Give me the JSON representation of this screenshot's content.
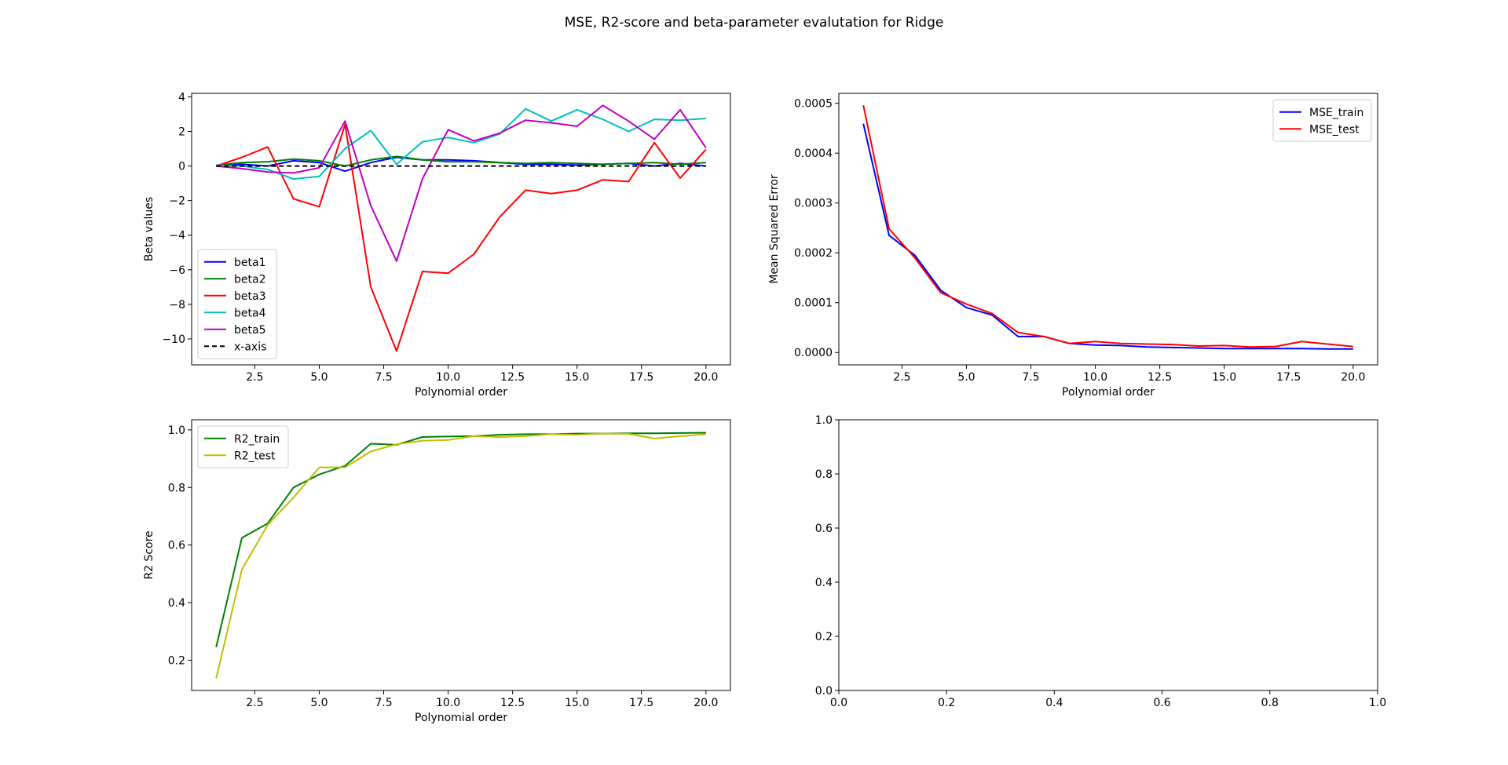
{
  "figure": {
    "suptitle": "MSE, R2-score and beta-parameter evalutation for Ridge"
  },
  "chart_data": [
    {
      "type": "line",
      "xlabel": "Polynomial order",
      "ylabel": "Beta values",
      "xlim": [
        0.05,
        20.95
      ],
      "ylim": [
        -11.5,
        4.2
      ],
      "xticks": [
        2.5,
        5.0,
        7.5,
        10.0,
        12.5,
        15.0,
        17.5,
        20.0
      ],
      "xtick_labels": [
        "2.5",
        "5.0",
        "7.5",
        "10.0",
        "12.5",
        "15.0",
        "17.5",
        "20.0"
      ],
      "yticks": [
        4,
        2,
        0,
        -2,
        -4,
        -6,
        -8,
        -10
      ],
      "ytick_labels": [
        "4",
        "2",
        "0",
        "−2",
        "−4",
        "−6",
        "−8",
        "−10"
      ],
      "legend": "lower-left",
      "x": [
        1,
        2,
        3,
        4,
        5,
        6,
        7,
        8,
        9,
        10,
        11,
        12,
        13,
        14,
        15,
        16,
        17,
        18,
        19,
        20
      ],
      "series": [
        {
          "name": "beta1",
          "color": "#0000ff",
          "dash": "",
          "values": [
            0.0,
            0.1,
            0.0,
            0.3,
            0.2,
            -0.3,
            0.2,
            0.5,
            0.35,
            0.35,
            0.3,
            0.2,
            0.1,
            0.1,
            0.05,
            0.1,
            0.15,
            0.0,
            0.15,
            0.0
          ]
        },
        {
          "name": "beta2",
          "color": "#008000",
          "dash": "",
          "values": [
            0.05,
            0.2,
            0.25,
            0.4,
            0.3,
            0.0,
            0.35,
            0.55,
            0.35,
            0.25,
            0.25,
            0.2,
            0.15,
            0.2,
            0.15,
            0.1,
            0.15,
            0.2,
            0.1,
            0.2
          ]
        },
        {
          "name": "beta3",
          "color": "#ff0000",
          "dash": "",
          "values": [
            0.0,
            0.5,
            1.1,
            -1.9,
            -2.35,
            2.4,
            -7.0,
            -10.7,
            -6.1,
            -6.2,
            -5.1,
            -2.95,
            -1.4,
            -1.6,
            -1.4,
            -0.8,
            -0.9,
            1.35,
            -0.7,
            0.95
          ]
        },
        {
          "name": "beta4",
          "color": "#00bfbf",
          "dash": "",
          "values": [
            0.05,
            0.0,
            -0.2,
            -0.75,
            -0.6,
            1.0,
            2.05,
            0.1,
            1.4,
            1.65,
            1.35,
            1.85,
            3.3,
            2.6,
            3.25,
            2.7,
            2.0,
            2.7,
            2.65,
            2.75
          ]
        },
        {
          "name": "beta5",
          "color": "#bf00bf",
          "dash": "",
          "values": [
            0.0,
            -0.15,
            -0.35,
            -0.4,
            -0.1,
            2.6,
            -2.3,
            -5.5,
            -0.75,
            2.1,
            1.45,
            1.9,
            2.65,
            2.5,
            2.3,
            3.5,
            2.6,
            1.55,
            3.25,
            1.05
          ]
        },
        {
          "name": "x-axis",
          "color": "#000000",
          "dash": "6,4",
          "values": [
            0,
            0,
            0,
            0,
            0,
            0,
            0,
            0,
            0,
            0,
            0,
            0,
            0,
            0,
            0,
            0,
            0,
            0,
            0,
            0
          ]
        }
      ]
    },
    {
      "type": "line",
      "xlabel": "Polynomial order",
      "ylabel": "Mean Squared Error",
      "xlim": [
        0.05,
        20.95
      ],
      "ylim": [
        -2.48e-05,
        0.00052
      ],
      "xticks": [
        2.5,
        5.0,
        7.5,
        10.0,
        12.5,
        15.0,
        17.5,
        20.0
      ],
      "xtick_labels": [
        "2.5",
        "5.0",
        "7.5",
        "10.0",
        "12.5",
        "15.0",
        "17.5",
        "20.0"
      ],
      "yticks": [
        0.0005,
        0.0004,
        0.0003,
        0.0002,
        0.0001,
        0.0
      ],
      "ytick_labels": [
        "0.0005",
        "0.0004",
        "0.0003",
        "0.0002",
        "0.0001",
        "0.0000"
      ],
      "legend": "top-right",
      "x": [
        1,
        2,
        3,
        4,
        5,
        6,
        7,
        8,
        9,
        10,
        11,
        12,
        13,
        14,
        15,
        16,
        17,
        18,
        19,
        20
      ],
      "series": [
        {
          "name": "MSE_train",
          "color": "#0000ff",
          "dash": "",
          "values": [
            0.000459,
            0.000235,
            0.000195,
            0.000125,
            9e-05,
            7.5e-05,
            3.2e-05,
            3.2e-05,
            1.8e-05,
            1.5e-05,
            1.4e-05,
            1.1e-05,
            1e-05,
            9e-06,
            8e-06,
            8e-06,
            8e-06,
            8e-06,
            7e-06,
            7e-06
          ]
        },
        {
          "name": "MSE_test",
          "color": "#ff0000",
          "dash": "",
          "values": [
            0.000496,
            0.000248,
            0.00019,
            0.00012,
            9.7e-05,
            7.8e-05,
            4e-05,
            3.2e-05,
            1.8e-05,
            2.2e-05,
            1.8e-05,
            1.7e-05,
            1.6e-05,
            1.3e-05,
            1.4e-05,
            1.1e-05,
            1.2e-05,
            2.2e-05,
            1.7e-05,
            1.2e-05
          ]
        }
      ]
    },
    {
      "type": "line",
      "xlabel": "Polynomial order",
      "ylabel": "R2 Score",
      "xlim": [
        0.05,
        20.95
      ],
      "ylim": [
        0.095,
        1.035
      ],
      "xticks": [
        2.5,
        5.0,
        7.5,
        10.0,
        12.5,
        15.0,
        17.5,
        20.0
      ],
      "xtick_labels": [
        "2.5",
        "5.0",
        "7.5",
        "10.0",
        "12.5",
        "15.0",
        "17.5",
        "20.0"
      ],
      "yticks": [
        1.0,
        0.8,
        0.6,
        0.4,
        0.2
      ],
      "ytick_labels": [
        "1.0",
        "0.8",
        "0.6",
        "0.4",
        "0.2"
      ],
      "legend": "top-left",
      "x": [
        1,
        2,
        3,
        4,
        5,
        6,
        7,
        8,
        9,
        10,
        11,
        12,
        13,
        14,
        15,
        16,
        17,
        18,
        19,
        20
      ],
      "series": [
        {
          "name": "R2_train",
          "color": "#008000",
          "dash": "",
          "values": [
            0.245,
            0.625,
            0.675,
            0.8,
            0.845,
            0.875,
            0.952,
            0.948,
            0.975,
            0.977,
            0.978,
            0.983,
            0.985,
            0.985,
            0.987,
            0.987,
            0.988,
            0.988,
            0.989,
            0.99
          ]
        },
        {
          "name": "R2_test",
          "color": "#bfbf00",
          "dash": "",
          "values": [
            0.137,
            0.515,
            0.67,
            0.765,
            0.87,
            0.87,
            0.925,
            0.95,
            0.962,
            0.965,
            0.978,
            0.975,
            0.978,
            0.985,
            0.983,
            0.987,
            0.986,
            0.97,
            0.978,
            0.985
          ]
        }
      ]
    },
    {
      "type": "line",
      "xlabel": "",
      "ylabel": "",
      "xlim": [
        0.0,
        1.0
      ],
      "ylim": [
        0.0,
        1.0
      ],
      "xticks": [
        0.0,
        0.2,
        0.4,
        0.6,
        0.8,
        1.0
      ],
      "xtick_labels": [
        "0.0",
        "0.2",
        "0.4",
        "0.6",
        "0.8",
        "1.0"
      ],
      "yticks": [
        1.0,
        0.8,
        0.6,
        0.4,
        0.2,
        0.0
      ],
      "ytick_labels": [
        "1.0",
        "0.8",
        "0.6",
        "0.4",
        "0.2",
        "0.0"
      ],
      "legend": "none",
      "x": [],
      "series": []
    }
  ]
}
